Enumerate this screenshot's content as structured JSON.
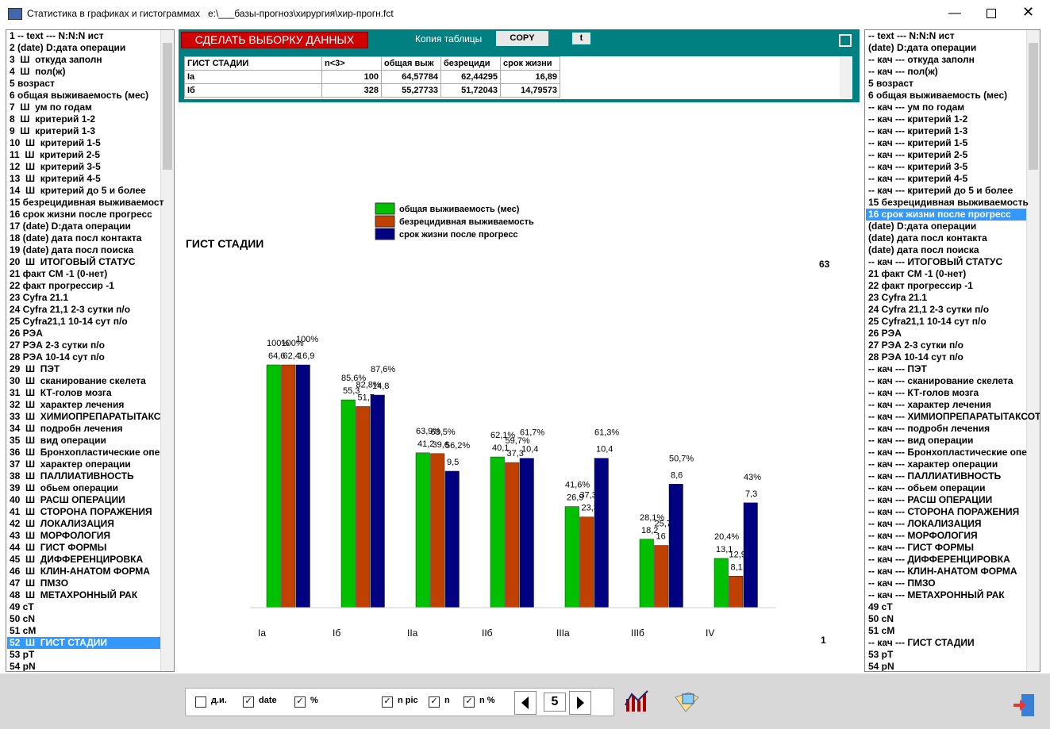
{
  "window": {
    "title": "Статистика в графиках и гистограммах   e:\\___базы-прогноз\\хирургия\\хир-прогн.fct"
  },
  "left_list": {
    "selected": 51,
    "items": [
      "1 -- text --- N:N:N ист",
      "2 (date) D:дата операции",
      "3  Ш  откуда заполн",
      "4  Ш  пол(ж)",
      "5 возраст",
      "6 общая выживаемость (мес)",
      "7  Ш  ум по годам",
      "8  Ш  критерий 1-2",
      "9  Ш  критерий 1-3",
      "10  Ш  критерий 1-5",
      "11  Ш  критерий 2-5",
      "12  Ш  критерий 3-5",
      "13  Ш  критерий 4-5",
      "14  Ш  критерий до 5 и более",
      "15 безрецидивная выживаемост",
      "16 срок жизни после прогресс",
      "17 (date) D:дата операции",
      "18 (date) дата посл контакта",
      "19 (date) дата посл поиска",
      "20  Ш  ИТОГОВЫЙ СТАТУС",
      "21 факт СМ -1 (0-нет)",
      "22 факт прогрессир -1",
      "23 Cyfra 21.1",
      "24 Cyfra 21,1 2-3 сутки п/о",
      "25 Cyfra21,1 10-14 сут п/о",
      "26 РЭА",
      "27 РЭА 2-3 сутки п/о",
      "28 РЭА 10-14 сут п/о",
      "29  Ш  ПЭТ",
      "30  Ш  сканирование скелета",
      "31  Ш  КТ-голов мозга",
      "32  Ш  характер лечения",
      "33  Ш  ХИМИОПРЕПАРАТЫТАКС",
      "34  Ш  подробн лечения",
      "35  Ш  вид операции",
      "36  Ш  Бронхопластические опе",
      "37  Ш  характер операции",
      "38  Ш  ПАЛЛИАТИВНОСТЬ",
      "39  Ш  обьем операции",
      "40  Ш  РАСШ ОПЕРАЦИИ",
      "41  Ш  СТОРОНА ПОРАЖЕНИЯ",
      "42  Ш  ЛОКАЛИЗАЦИЯ",
      "43  Ш  МОРФОЛОГИЯ",
      "44  Ш  ГИСТ ФОРМЫ",
      "45  Ш  ДИФФЕРЕНЦИРОВКА",
      "46  Ш  КЛИН-АНАТОМ ФОРМА",
      "47  Ш  ПМЗО",
      "48  Ш  МЕТАХРОННЫЙ РАК",
      "49 cT",
      "50 cN",
      "51 cM",
      "52  Ш  ГИСТ СТАДИИ",
      "53 pT",
      "54 pN"
    ]
  },
  "right_list": {
    "selected": 15,
    "items": [
      "-- text --- N:N:N ист",
      "(date) D:дата операции",
      "-- кач --- откуда заполн",
      "-- кач --- пол(ж)",
      "5 возраст",
      "6 общая выживаемость (мес)",
      "-- кач --- ум по годам",
      "-- кач --- критерий 1-2",
      "-- кач --- критерий 1-3",
      "-- кач --- критерий 1-5",
      "-- кач --- критерий 2-5",
      "-- кач --- критерий 3-5",
      "-- кач --- критерий 4-5",
      "-- кач --- критерий до 5 и более",
      "15 безрецидивная выживаемость",
      "16 срок жизни после прогресс",
      "(date) D:дата операции",
      "(date) дата посл контакта",
      "(date) дата посл поиска",
      "-- кач --- ИТОГОВЫЙ СТАТУС",
      "21 факт СМ -1 (0-нет)",
      "22 факт прогрессир -1",
      "23 Cyfra 21.1",
      "24 Cyfra 21,1 2-3 сутки п/о",
      "25 Cyfra21,1 10-14 сут п/о",
      "26 РЭА",
      "27 РЭА 2-3 сутки п/о",
      "28 РЭА 10-14 сут п/о",
      "-- кач --- ПЭТ",
      "-- кач --- сканирование скелета",
      "-- кач --- КТ-голов мозга",
      "-- кач --- характер лечения",
      "-- кач --- ХИМИОПРЕПАРАТЫТАКСОТ",
      "-- кач --- подробн лечения",
      "-- кач --- вид операции",
      "-- кач --- Бронхопластические опе",
      "-- кач --- характер операции",
      "-- кач --- ПАЛЛИАТИВНОСТЬ",
      "-- кач --- обьем операции",
      "-- кач --- РАСШ ОПЕРАЦИИ",
      "-- кач --- СТОРОНА ПОРАЖЕНИЯ",
      "-- кач --- ЛОКАЛИЗАЦИЯ",
      "-- кач --- МОРФОЛОГИЯ",
      "-- кач --- ГИСТ ФОРМЫ",
      "-- кач --- ДИФФЕРЕНЦИРОВКА",
      "-- кач --- КЛИН-АНАТОМ ФОРМА",
      "-- кач --- ПМЗО",
      "-- кач --- МЕТАХРОННЫЙ РАК",
      "49 cT",
      "50 cN",
      "51 cM",
      "-- кач --- ГИСТ СТАДИИ",
      "53 pT",
      "54 pN"
    ]
  },
  "panel": {
    "select_button": "СДЕЛАТЬ ВЫБОРКУ ДАННЫХ",
    "copy_label": "Копия таблицы",
    "copy_button": "COPY",
    "t_button": "t",
    "table": {
      "header": [
        "ГИСТ СТАДИИ",
        "n<3>",
        "общая выж",
        "безрециди",
        "срок жизни"
      ],
      "rows": [
        [
          "Ia",
          "100",
          "64,57784",
          "62,44295",
          "16,89"
        ],
        [
          "Iб",
          "328",
          "55,27733",
          "51,72043",
          "14,79573"
        ]
      ]
    }
  },
  "chart_data": {
    "type": "bar",
    "title": "ГИСТ СТАДИИ",
    "top_label": "63",
    "bottom_label": "1",
    "categories": [
      "Ia",
      "Iб",
      "IIa",
      "IIб",
      "IIIa",
      "IIIб",
      "IV"
    ],
    "series": [
      {
        "name": "общая выживаемость (мес)",
        "color": "#00c000",
        "values": [
          64.6,
          55.3,
          41.2,
          40.1,
          26.9,
          18.2,
          13.1
        ],
        "value_labels": [
          "64,6",
          "55,3",
          "41,2",
          "40,1",
          "26,9",
          "18,2",
          "13,1"
        ],
        "percent_labels": [
          "100%",
          "85,6%",
          "63,9%",
          "62,1%",
          "41,6%",
          "28,1%",
          "20,4%"
        ]
      },
      {
        "name": "безрецидивная выживаемость",
        "color": "#c04000",
        "values": [
          62.4,
          51.7,
          39.6,
          37.3,
          23.3,
          16,
          8.1
        ],
        "value_labels": [
          "62,4",
          "51,7",
          "39,6",
          "37,3",
          "23,3",
          "16",
          "8,1"
        ],
        "percent_labels": [
          "100%",
          "82,8%",
          "63,5%",
          "59,7%",
          "37,3%",
          "25,7%",
          "12,9"
        ]
      },
      {
        "name": "срок жизни после прогресс",
        "color": "#000080",
        "values": [
          16.9,
          14.8,
          9.5,
          10.4,
          10.4,
          8.6,
          7.3
        ],
        "value_labels": [
          "16,9",
          "14,8",
          "9,5",
          "10,4",
          "10,4",
          "8,6",
          "7,3"
        ],
        "percent_labels": [
          "100%",
          "87,6%",
          "56,2%",
          "61,7%",
          "61,3%",
          "50,7%",
          "43%"
        ]
      }
    ]
  },
  "toolbar": {
    "checks": [
      {
        "label": "д.и.",
        "checked": false
      },
      {
        "label": "date",
        "checked": true
      },
      {
        "label": "%",
        "checked": true
      },
      {
        "label": "n pic",
        "checked": true
      },
      {
        "label": "n",
        "checked": true
      },
      {
        "label": "n %",
        "checked": true
      }
    ],
    "page": "5"
  }
}
